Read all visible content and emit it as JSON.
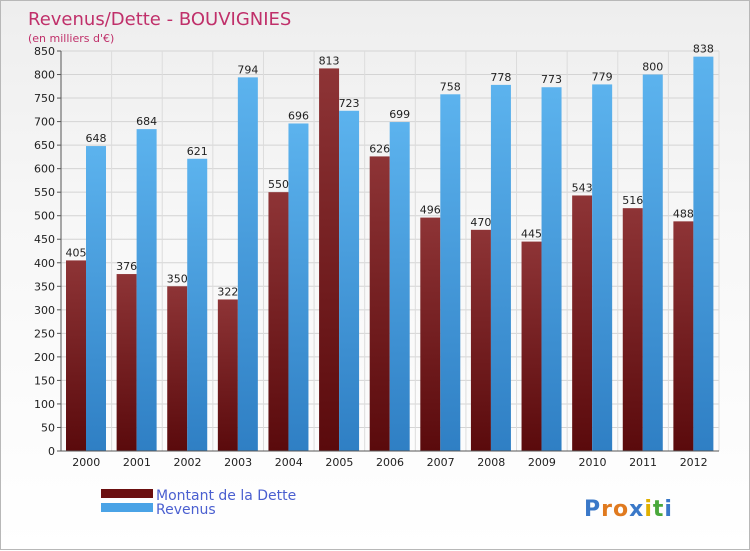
{
  "chart_data": {
    "type": "bar",
    "title": "Revenus/Dette - BOUVIGNIES",
    "subtitle": "(en milliers d'€)",
    "categories": [
      "2000",
      "2001",
      "2002",
      "2003",
      "2004",
      "2005",
      "2006",
      "2007",
      "2008",
      "2009",
      "2010",
      "2011",
      "2012"
    ],
    "series": [
      {
        "name": "Montant de la Dette",
        "values": [
          405,
          376,
          350,
          322,
          550,
          813,
          626,
          496,
          470,
          445,
          543,
          516,
          488
        ],
        "color": "#7a1c1c"
      },
      {
        "name": "Revenus",
        "values": [
          648,
          684,
          621,
          794,
          696,
          723,
          699,
          758,
          778,
          773,
          779,
          800,
          838
        ],
        "color": "#4aa3e6"
      }
    ],
    "ylim": [
      0,
      850
    ],
    "ytick_step": 50,
    "grid": true,
    "legend_position": "bottom-left"
  },
  "logo": {
    "letters": [
      "P",
      "r",
      "o",
      "x",
      "i",
      "t",
      "i"
    ],
    "colors": [
      "#3a78c8",
      "#e07a1f",
      "#e07a1f",
      "#3a78c8",
      "#e0b000",
      "#4aa83a",
      "#3a78c8"
    ]
  }
}
